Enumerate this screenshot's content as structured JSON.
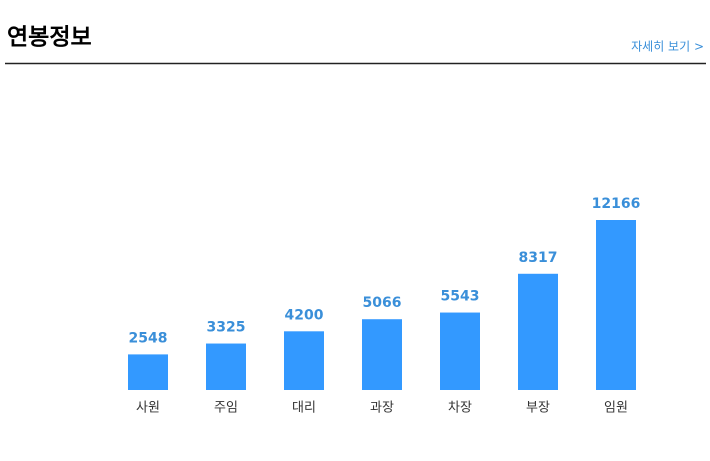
{
  "header": {
    "title": "연봉정보",
    "link": "자세히 보기 >"
  },
  "chart_data": {
    "type": "bar",
    "categories": [
      "사원",
      "주임",
      "대리",
      "과장",
      "차장",
      "부장",
      "임원"
    ],
    "values": [
      2548,
      3325,
      4200,
      5066,
      5543,
      8317,
      12166
    ],
    "color": "#3399ff"
  }
}
